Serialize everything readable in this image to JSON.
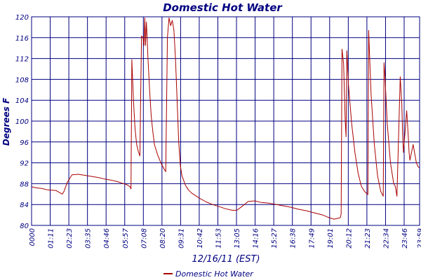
{
  "chart_data": {
    "type": "line",
    "title": "Domestic Hot Water",
    "xlabel": "12/16/11 (EST)",
    "ylabel": "Degrees F",
    "ylim": [
      80,
      120
    ],
    "yticks": [
      "80",
      "84",
      "88",
      "92",
      "96",
      "100",
      "104",
      "108",
      "112",
      "116",
      "120"
    ],
    "xticks": [
      "0000",
      "01:11",
      "02:23",
      "03:35",
      "04:46",
      "05:57",
      "07:08",
      "08:20",
      "09:31",
      "10:42",
      "11:53",
      "13:05",
      "14:16",
      "15:27",
      "16:38",
      "17:49",
      "19:01",
      "20:12",
      "21:23",
      "22:34",
      "23:46",
      "23:59"
    ],
    "xlim_hours": [
      0,
      24
    ],
    "grid": true,
    "legend": "bottom-center",
    "colors": {
      "series": "#aa0000",
      "grid": "#000080",
      "text": "#000080"
    },
    "series": [
      {
        "name": "Domestic Hot Water",
        "x": [
          0.0,
          0.3,
          0.6,
          1.0,
          1.5,
          1.9,
          2.0,
          2.2,
          2.5,
          2.9,
          3.3,
          3.7,
          4.1,
          4.5,
          4.9,
          5.3,
          5.6,
          5.9,
          6.1,
          6.15,
          6.2,
          6.3,
          6.4,
          6.5,
          6.6,
          6.7,
          6.75,
          6.8,
          6.9,
          6.95,
          7.0,
          7.05,
          7.1,
          7.15,
          7.2,
          7.3,
          7.4,
          7.5,
          7.6,
          7.8,
          8.0,
          8.2,
          8.3,
          8.4,
          8.5,
          8.6,
          8.7,
          8.8,
          8.9,
          9.0,
          9.1,
          9.2,
          9.3,
          9.4,
          9.5,
          9.7,
          9.9,
          10.1,
          10.4,
          10.8,
          11.2,
          11.6,
          12.0,
          12.4,
          12.7,
          13.0,
          13.2,
          13.4,
          13.8,
          14.2,
          14.6,
          15.0,
          15.5,
          16.0,
          16.5,
          17.0,
          17.5,
          18.0,
          18.3,
          18.7,
          19.0,
          19.1,
          19.15,
          19.2,
          19.3,
          19.4,
          19.45,
          19.5,
          19.6,
          19.8,
          20.0,
          20.2,
          20.4,
          20.6,
          20.8,
          20.85,
          20.9,
          21.0,
          21.2,
          21.4,
          21.6,
          21.75,
          21.8,
          21.85,
          22.0,
          22.2,
          22.4,
          22.5,
          22.55,
          22.6,
          22.8,
          22.9,
          22.95,
          23.0,
          23.2,
          23.3,
          23.35,
          23.4,
          23.6,
          23.8,
          23.9,
          24.0
        ],
        "values": [
          87.4,
          87.2,
          87.1,
          86.8,
          86.7,
          86.0,
          86.5,
          88.2,
          89.7,
          89.8,
          89.6,
          89.4,
          89.2,
          88.9,
          88.7,
          88.4,
          88.1,
          87.8,
          87.4,
          87.0,
          111.8,
          104.0,
          98.5,
          95.5,
          94.2,
          93.3,
          105.0,
          116.3,
          116.0,
          114.5,
          119.8,
          114.5,
          119.0,
          116.0,
          112.0,
          106.0,
          101.0,
          98.0,
          95.5,
          93.5,
          92.0,
          90.8,
          90.3,
          116.0,
          119.8,
          118.3,
          119.3,
          117.5,
          112.0,
          104.0,
          96.0,
          91.5,
          89.5,
          88.7,
          87.8,
          86.8,
          86.2,
          85.8,
          85.2,
          84.5,
          84.0,
          83.6,
          83.2,
          82.9,
          82.9,
          83.6,
          84.1,
          84.6,
          84.7,
          84.4,
          84.3,
          84.1,
          83.8,
          83.5,
          83.1,
          82.8,
          82.4,
          82.0,
          81.6,
          81.2,
          81.4,
          81.5,
          82.2,
          113.8,
          111.0,
          100.0,
          97.0,
          113.5,
          107.0,
          99.5,
          94.0,
          90.0,
          87.5,
          86.5,
          85.9,
          117.4,
          113.0,
          105.0,
          95.5,
          89.5,
          86.5,
          85.6,
          111.2,
          109.0,
          99.5,
          92.0,
          88.0,
          87.5,
          86.5,
          85.6,
          108.5,
          103.0,
          97.5,
          94.0,
          102.0,
          97.0,
          94.0,
          92.5,
          95.5,
          92.0,
          91.3,
          91.0
        ]
      }
    ]
  }
}
